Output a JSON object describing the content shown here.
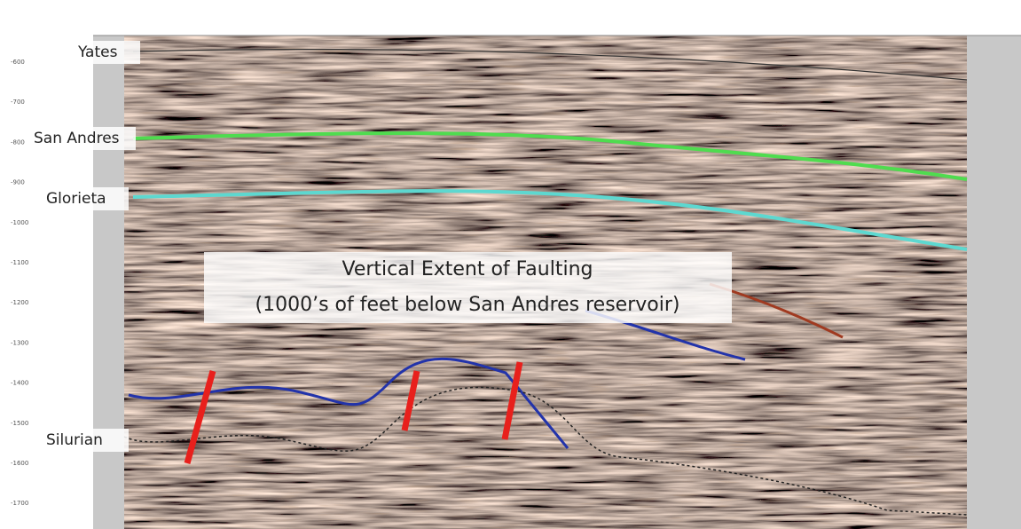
{
  "horizons": [
    "Yates",
    "San Andres",
    "Glorieta",
    "Silurian"
  ],
  "annotation": {
    "title": "Vertical Extent of Faulting",
    "subtitle": "(1000’s of feet below San Andres reservoir)"
  },
  "depth_labels": [
    "-600",
    "-700",
    "-800",
    "-900",
    "-1000",
    "-1100",
    "-1200",
    "-1300",
    "-1400",
    "-1500",
    "-1600",
    "-1700"
  ]
}
